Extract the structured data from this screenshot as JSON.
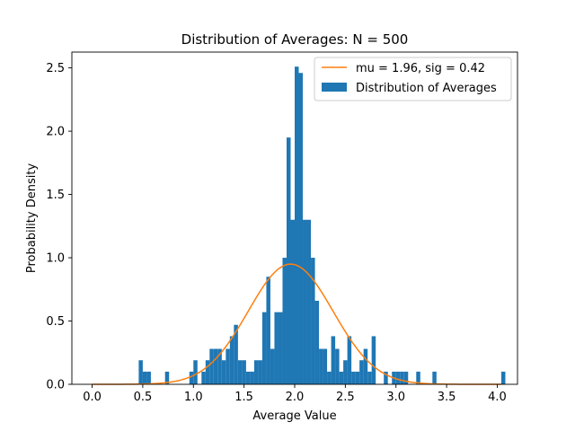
{
  "chart_data": {
    "type": "bar",
    "title": "Distribution of Averages: N = 500",
    "xlabel": "Average Value",
    "ylabel": "Probability Density",
    "xlim": [
      -0.2,
      4.2
    ],
    "ylim": [
      0,
      2.625
    ],
    "x_ticks": [
      "0.0",
      "0.5",
      "1.0",
      "1.5",
      "2.0",
      "2.5",
      "3.0",
      "3.5",
      "4.0"
    ],
    "y_ticks": [
      "0.0",
      "0.5",
      "1.0",
      "1.5",
      "2.0",
      "2.5"
    ],
    "bin_width": 0.04,
    "legend_position": "top-right",
    "colors": {
      "histogram": "#1f77b4",
      "curve": "#ff7f0e"
    },
    "histogram": {
      "name": "Distribution of Averages",
      "bins": [
        {
          "x": 0.46,
          "y": 0.19
        },
        {
          "x": 0.5,
          "y": 0.1
        },
        {
          "x": 0.54,
          "y": 0.1
        },
        {
          "x": 0.72,
          "y": 0.1
        },
        {
          "x": 0.96,
          "y": 0.1
        },
        {
          "x": 1.0,
          "y": 0.19
        },
        {
          "x": 1.08,
          "y": 0.1
        },
        {
          "x": 1.12,
          "y": 0.19
        },
        {
          "x": 1.16,
          "y": 0.28
        },
        {
          "x": 1.2,
          "y": 0.28
        },
        {
          "x": 1.24,
          "y": 0.28
        },
        {
          "x": 1.28,
          "y": 0.19
        },
        {
          "x": 1.32,
          "y": 0.28
        },
        {
          "x": 1.36,
          "y": 0.38
        },
        {
          "x": 1.4,
          "y": 0.47
        },
        {
          "x": 1.44,
          "y": 0.19
        },
        {
          "x": 1.48,
          "y": 0.19
        },
        {
          "x": 1.52,
          "y": 0.1
        },
        {
          "x": 1.56,
          "y": 0.1
        },
        {
          "x": 1.6,
          "y": 0.19
        },
        {
          "x": 1.64,
          "y": 0.19
        },
        {
          "x": 1.68,
          "y": 0.57
        },
        {
          "x": 1.72,
          "y": 0.85
        },
        {
          "x": 1.76,
          "y": 0.28
        },
        {
          "x": 1.8,
          "y": 0.57
        },
        {
          "x": 1.84,
          "y": 0.57
        },
        {
          "x": 1.88,
          "y": 1.0
        },
        {
          "x": 1.92,
          "y": 1.95
        },
        {
          "x": 1.96,
          "y": 1.3
        },
        {
          "x": 2.0,
          "y": 2.51
        },
        {
          "x": 2.04,
          "y": 2.46
        },
        {
          "x": 2.08,
          "y": 1.3
        },
        {
          "x": 2.12,
          "y": 1.3
        },
        {
          "x": 2.16,
          "y": 1.0
        },
        {
          "x": 2.2,
          "y": 0.66
        },
        {
          "x": 2.24,
          "y": 0.28
        },
        {
          "x": 2.28,
          "y": 0.28
        },
        {
          "x": 2.32,
          "y": 0.1
        },
        {
          "x": 2.36,
          "y": 0.38
        },
        {
          "x": 2.4,
          "y": 0.28
        },
        {
          "x": 2.44,
          "y": 0.1
        },
        {
          "x": 2.48,
          "y": 0.19
        },
        {
          "x": 2.52,
          "y": 0.38
        },
        {
          "x": 2.56,
          "y": 0.1
        },
        {
          "x": 2.6,
          "y": 0.1
        },
        {
          "x": 2.64,
          "y": 0.19
        },
        {
          "x": 2.68,
          "y": 0.28
        },
        {
          "x": 2.72,
          "y": 0.1
        },
        {
          "x": 2.76,
          "y": 0.38
        },
        {
          "x": 2.88,
          "y": 0.1
        },
        {
          "x": 2.96,
          "y": 0.1
        },
        {
          "x": 3.0,
          "y": 0.1
        },
        {
          "x": 3.04,
          "y": 0.1
        },
        {
          "x": 3.08,
          "y": 0.1
        },
        {
          "x": 3.2,
          "y": 0.1
        },
        {
          "x": 3.36,
          "y": 0.1
        },
        {
          "x": 4.04,
          "y": 0.1
        }
      ]
    },
    "fit": {
      "name": "mu = 1.96, sig = 0.42",
      "mu": 1.96,
      "sigma": 0.42,
      "x_range": [
        0.0,
        4.04
      ]
    }
  }
}
